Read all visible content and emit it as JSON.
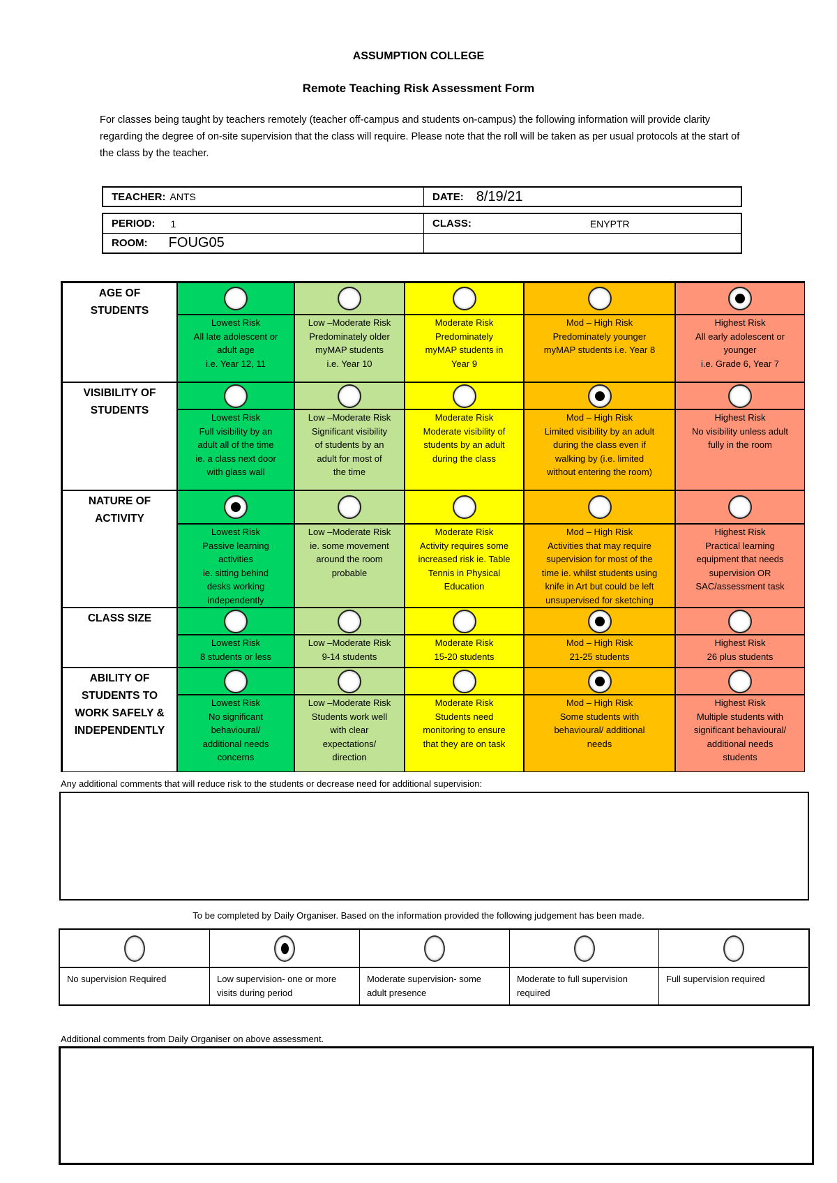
{
  "header": {
    "college": "ASSUMPTION COLLEGE",
    "title": "Remote Teaching Risk Assessment Form",
    "intro": "For classes being taught by teachers remotely (teacher off-campus and students on-campus) the following information will provide clarity regarding the degree of on-site supervision that the class will require. Please note that the roll will be taken as per usual protocols at the start of the class by the teacher."
  },
  "info": {
    "teacher_label": "TEACHER:",
    "teacher_value": "ANTS",
    "date_label": "DATE:",
    "date_value": "8/19/21",
    "period_label": "PERIOD:",
    "period_value": "1",
    "class_label": "CLASS:",
    "class_value": "ENYPTR",
    "room_label": "ROOM:",
    "room_value": "FOUG05"
  },
  "risk_levels": [
    "Lowest Risk",
    "Low –Moderate Risk",
    "Moderate Risk",
    "Mod – High Risk",
    "Highest Risk"
  ],
  "level_colors": [
    "#00d462",
    "#bfe295",
    "#ffff00",
    "#ffc000",
    "#ff9478"
  ],
  "criteria": [
    {
      "label": "AGE OF STUDENTS",
      "selected_index": 4,
      "options": [
        {
          "level": "Lowest Risk",
          "lines": [
            "All late adolescent or",
            "adult age",
            "i.e. Year 12, 11"
          ]
        },
        {
          "level": "Low –Moderate Risk",
          "lines": [
            "Predominately older",
            "myMAP students",
            "i.e. Year 10"
          ]
        },
        {
          "level": "Moderate Risk",
          "lines": [
            "Predominately",
            "myMAP students in",
            "Year 9"
          ]
        },
        {
          "level": "Mod – High Risk",
          "lines": [
            "Predominately younger",
            "myMAP students i.e. Year 8"
          ]
        },
        {
          "level": "Highest Risk",
          "lines": [
            "All early adolescent or",
            "younger",
            "i.e. Grade 6, Year 7"
          ]
        }
      ]
    },
    {
      "label": "VISIBILITY OF STUDENTS",
      "selected_index": 3,
      "options": [
        {
          "level": "Lowest Risk",
          "lines": [
            "Full visibility by an",
            "adult all of the time",
            "ie. a class next door",
            "with glass wall"
          ]
        },
        {
          "level": "Low –Moderate Risk",
          "lines": [
            "Significant visibility",
            "of students by an",
            "adult for most of",
            "the time"
          ]
        },
        {
          "level": "Moderate Risk",
          "lines": [
            "Moderate visibility of",
            "students by an adult",
            "during the class"
          ]
        },
        {
          "level": "Mod – High Risk",
          "lines": [
            "Limited visibility by an adult",
            "during the class even if",
            "walking by (i.e. limited",
            "without entering the room)"
          ]
        },
        {
          "level": "Highest Risk",
          "lines": [
            "No visibility unless adult",
            "fully in the room"
          ]
        }
      ]
    },
    {
      "label": "NATURE OF ACTIVITY",
      "selected_index": 0,
      "options": [
        {
          "level": "Lowest Risk",
          "lines": [
            "Passive learning",
            "activities",
            "ie. sitting behind",
            "desks working",
            "independently"
          ]
        },
        {
          "level": "Low –Moderate Risk",
          "lines": [
            "ie. some movement",
            "around the room",
            "probable"
          ]
        },
        {
          "level": "Moderate Risk",
          "lines": [
            "Activity requires some",
            "increased risk ie. Table",
            "Tennis in Physical",
            "Education"
          ]
        },
        {
          "level": "Mod – High Risk",
          "lines": [
            "Activities that may require",
            "supervision for most of the",
            "time ie. whilst students using",
            "knife in Art but could be left",
            "unsupervised for sketching"
          ]
        },
        {
          "level": "Highest Risk",
          "lines": [
            "Practical learning",
            "equipment that needs",
            "supervision OR",
            "SAC/assessment task"
          ]
        }
      ]
    },
    {
      "label": "CLASS SIZE",
      "selected_index": 3,
      "options": [
        {
          "level": "Lowest Risk",
          "lines": [
            "8 students or less"
          ]
        },
        {
          "level": "Low –Moderate Risk",
          "lines": [
            "9-14 students"
          ]
        },
        {
          "level": "Moderate Risk",
          "lines": [
            "15-20 students"
          ]
        },
        {
          "level": "Mod – High Risk",
          "lines": [
            "21-25 students"
          ]
        },
        {
          "level": "Highest Risk",
          "lines": [
            "26 plus students"
          ]
        }
      ]
    },
    {
      "label": "ABILITY OF STUDENTS TO WORK SAFELY & INDEPENDENTLY",
      "selected_index": 3,
      "options": [
        {
          "level": "Lowest Risk",
          "lines": [
            "No significant",
            "behavioural/",
            "additional needs",
            "concerns"
          ]
        },
        {
          "level": "Low –Moderate Risk",
          "lines": [
            "Students work well",
            "with clear",
            "expectations/",
            "direction"
          ]
        },
        {
          "level": "Moderate Risk",
          "lines": [
            "Students need",
            "monitoring to ensure",
            "that they are on task"
          ]
        },
        {
          "level": "Mod – High Risk",
          "lines": [
            "Some students with",
            "behavioural/ additional",
            "needs"
          ]
        },
        {
          "level": "Highest Risk",
          "lines": [
            "Multiple students with",
            "significant behavioural/",
            "additional needs",
            "students"
          ]
        }
      ]
    }
  ],
  "comments": {
    "label": "Any additional comments that will reduce risk to the students or decrease need for additional supervision:",
    "value": ""
  },
  "judgement": {
    "caption": "To be completed by Daily Organiser. Based on the information provided the following judgement has been made.",
    "selected_index": 1,
    "options": [
      "No supervision Required",
      "Low supervision- one or more visits during period",
      "Moderate supervision- some adult presence",
      "Moderate to full supervision required",
      "Full supervision required"
    ]
  },
  "organiser_comments": {
    "label": "Additional comments from Daily Organiser on above assessment.",
    "value": ""
  }
}
